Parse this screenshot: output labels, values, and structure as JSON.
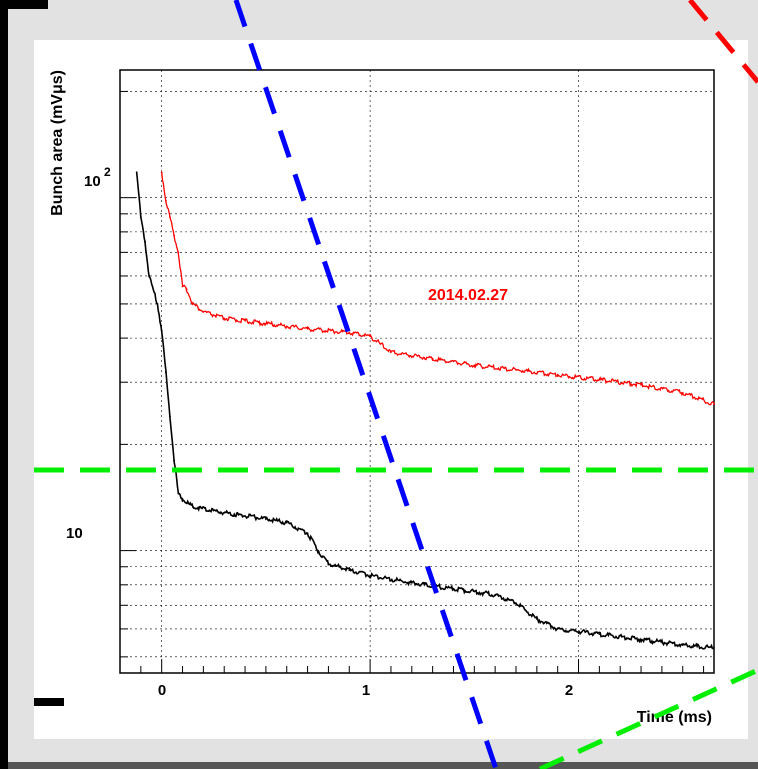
{
  "chart_data": {
    "type": "scatter",
    "title": "",
    "xlabel": "Time (ms)",
    "ylabel": "Bunch area (mVμs)",
    "x_tick_labels": [
      "0",
      "1",
      "2"
    ],
    "y_tick_labels": [
      {
        "base": "10",
        "exp": "2"
      },
      {
        "base": "10",
        "exp": ""
      }
    ],
    "xlim": [
      -0.2,
      2.65
    ],
    "ylim": [
      4.5,
      230
    ],
    "yscale": "log",
    "grid": true,
    "annotations": [
      {
        "text": "2014.02.27",
        "color": "#ff0000"
      }
    ],
    "series": [
      {
        "color": "#ff0000",
        "points": [
          [
            0.0,
            118
          ],
          [
            0.02,
            98
          ],
          [
            0.04,
            88
          ],
          [
            0.06,
            78
          ],
          [
            0.08,
            70
          ],
          [
            0.1,
            56
          ],
          [
            0.12,
            55
          ],
          [
            0.15,
            50
          ],
          [
            0.2,
            47.5
          ],
          [
            0.3,
            45.5
          ],
          [
            0.5,
            44
          ],
          [
            0.7,
            42.5
          ],
          [
            0.9,
            41.5
          ],
          [
            1.0,
            40.5
          ],
          [
            1.05,
            38.5
          ],
          [
            1.1,
            36.5
          ],
          [
            1.3,
            35
          ],
          [
            1.5,
            33.5
          ],
          [
            1.7,
            32.5
          ],
          [
            1.9,
            31.5
          ],
          [
            2.1,
            30.5
          ],
          [
            2.3,
            29.5
          ],
          [
            2.5,
            28
          ],
          [
            2.65,
            26
          ]
        ]
      },
      {
        "color": "#000000",
        "points": [
          [
            -0.12,
            118
          ],
          [
            -0.1,
            88
          ],
          [
            -0.08,
            75
          ],
          [
            -0.06,
            60
          ],
          [
            -0.02,
            50
          ],
          [
            0.0,
            42
          ],
          [
            0.02,
            32
          ],
          [
            0.04,
            24
          ],
          [
            0.06,
            18
          ],
          [
            0.08,
            14.5
          ],
          [
            0.1,
            14
          ],
          [
            0.15,
            13.3
          ],
          [
            0.3,
            12.8
          ],
          [
            0.5,
            12.3
          ],
          [
            0.6,
            12
          ],
          [
            0.7,
            11.2
          ],
          [
            0.75,
            10
          ],
          [
            0.8,
            9.2
          ],
          [
            0.9,
            8.8
          ],
          [
            1.0,
            8.5
          ],
          [
            1.2,
            8.1
          ],
          [
            1.4,
            7.8
          ],
          [
            1.6,
            7.5
          ],
          [
            1.7,
            7.1
          ],
          [
            1.8,
            6.4
          ],
          [
            1.9,
            6.0
          ],
          [
            2.1,
            5.8
          ],
          [
            2.3,
            5.6
          ],
          [
            2.5,
            5.4
          ],
          [
            2.65,
            5.3
          ]
        ]
      }
    ],
    "overlay_lines": [
      {
        "color": "#0000ff",
        "style": "dashed"
      },
      {
        "color": "#00ee00",
        "style": "dashed"
      },
      {
        "color": "#ff0000",
        "style": "dashed"
      }
    ]
  }
}
